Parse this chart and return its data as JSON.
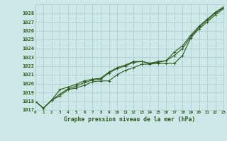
{
  "title": "Graphe pression niveau de la mer (hPa)",
  "background_color": "#cce8e8",
  "grid_color": "#aacccc",
  "line_color": "#2d5a1b",
  "x_labels": [
    "0",
    "1",
    "2",
    "3",
    "4",
    "5",
    "6",
    "7",
    "8",
    "9",
    "10",
    "11",
    "12",
    "13",
    "14",
    "15",
    "16",
    "17",
    "18",
    "19",
    "20",
    "21",
    "22",
    "23"
  ],
  "ylim": [
    1017,
    1029
  ],
  "yticks": [
    1017,
    1018,
    1019,
    1020,
    1021,
    1022,
    1023,
    1024,
    1025,
    1026,
    1027,
    1028
  ],
  "series1": [
    1018.0,
    1017.2,
    1018.1,
    1018.6,
    1019.3,
    1019.5,
    1019.8,
    1020.2,
    1020.3,
    1020.3,
    1021.0,
    1021.5,
    1021.8,
    1022.2,
    1022.2,
    1022.3,
    1022.3,
    1022.3,
    1023.2,
    1025.2,
    1026.2,
    1027.0,
    1027.8,
    1028.5
  ],
  "series2": [
    1018.0,
    1017.2,
    1018.1,
    1018.8,
    1019.4,
    1019.7,
    1020.1,
    1020.4,
    1020.5,
    1021.2,
    1021.7,
    1022.0,
    1022.4,
    1022.5,
    1022.3,
    1022.5,
    1022.6,
    1023.2,
    1024.0,
    1025.3,
    1026.4,
    1027.2,
    1028.0,
    1028.6
  ],
  "series3": [
    1018.0,
    1017.2,
    1018.1,
    1019.3,
    1019.6,
    1019.9,
    1020.3,
    1020.5,
    1020.6,
    1021.3,
    1021.8,
    1022.1,
    1022.5,
    1022.5,
    1022.3,
    1022.4,
    1022.6,
    1023.6,
    1024.3,
    1025.5,
    1026.5,
    1027.3,
    1028.1,
    1028.7
  ],
  "marker": "+"
}
